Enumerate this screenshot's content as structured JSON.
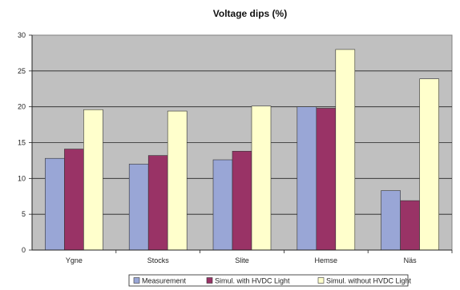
{
  "chart_data": {
    "type": "bar",
    "title": "Voltage dips (%)",
    "xlabel": "",
    "ylabel": "",
    "categories": [
      "Ygne",
      "Stocks",
      "Slite",
      "Hemse",
      "Näs"
    ],
    "series": [
      {
        "name": "Measurement",
        "values": [
          12.8,
          12.0,
          12.6,
          20.0,
          8.3
        ],
        "color": "#99a6d6"
      },
      {
        "name": "Simul. with HVDC Light",
        "values": [
          14.1,
          13.2,
          13.8,
          19.8,
          6.9
        ],
        "color": "#993366"
      },
      {
        "name": "Simul. without HVDC Light",
        "values": [
          19.6,
          19.4,
          20.1,
          28.0,
          23.9
        ],
        "color": "#ffffcc"
      }
    ],
    "ylim": [
      0,
      30
    ],
    "yticks": [
      0,
      5,
      10,
      15,
      20,
      25,
      30
    ],
    "grid": true,
    "plot_background": "#c0c0c0",
    "legend_position": "bottom"
  }
}
